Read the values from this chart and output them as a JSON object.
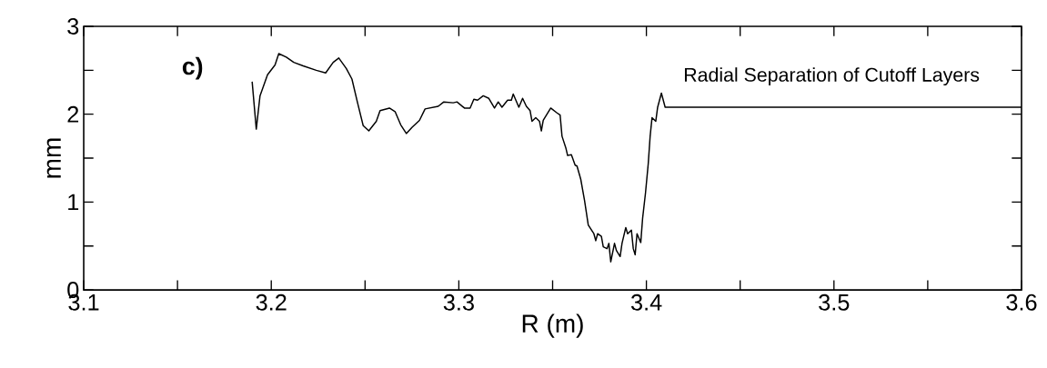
{
  "chart_data": {
    "type": "line",
    "xlabel": "R (m)",
    "ylabel": "mm",
    "annotations": [
      "c)",
      "Radial Separation of Cutoff Layers"
    ],
    "x": [
      3.1898,
      3.192,
      3.194,
      3.198,
      3.202,
      3.204,
      3.208,
      3.212,
      3.217,
      3.224,
      3.229,
      3.233,
      3.236,
      3.24,
      3.243,
      3.246,
      3.249,
      3.252,
      3.256,
      3.258,
      3.263,
      3.266,
      3.269,
      3.272,
      3.275,
      3.279,
      3.282,
      3.289,
      3.292,
      3.297,
      3.299,
      3.303,
      3.306,
      3.308,
      3.31,
      3.313,
      3.316,
      3.319,
      3.321,
      3.323,
      3.326,
      3.328,
      3.329,
      3.332,
      3.334,
      3.336,
      3.338,
      3.339,
      3.341,
      3.343,
      3.344,
      3.345,
      3.349,
      3.352,
      3.354,
      3.355,
      3.357,
      3.358,
      3.36,
      3.362,
      3.363,
      3.365,
      3.367,
      3.369,
      3.372,
      3.373,
      3.374,
      3.376,
      3.377,
      3.379,
      3.38,
      3.381,
      3.383,
      3.384,
      3.386,
      3.387,
      3.389,
      3.39,
      3.392,
      3.393,
      3.394,
      3.395,
      3.397,
      3.398,
      3.3995,
      3.401,
      3.402,
      3.403,
      3.405,
      3.406,
      3.408,
      3.41,
      3.6
    ],
    "values": [
      2.37,
      1.83,
      2.21,
      2.45,
      2.56,
      2.69,
      2.65,
      2.59,
      2.55,
      2.5,
      2.47,
      2.59,
      2.64,
      2.52,
      2.4,
      2.13,
      1.87,
      1.81,
      1.92,
      2.04,
      2.07,
      2.03,
      1.88,
      1.78,
      1.85,
      1.93,
      2.06,
      2.09,
      2.14,
      2.13,
      2.14,
      2.07,
      2.07,
      2.17,
      2.16,
      2.21,
      2.18,
      2.07,
      2.14,
      2.08,
      2.16,
      2.16,
      2.23,
      2.08,
      2.18,
      2.09,
      2.04,
      1.92,
      1.96,
      1.92,
      1.81,
      1.93,
      2.07,
      2.02,
      1.99,
      1.75,
      1.62,
      1.53,
      1.54,
      1.42,
      1.41,
      1.26,
      1.02,
      0.74,
      0.64,
      0.56,
      0.64,
      0.61,
      0.49,
      0.47,
      0.53,
      0.32,
      0.53,
      0.45,
      0.38,
      0.53,
      0.71,
      0.64,
      0.68,
      0.47,
      0.4,
      0.64,
      0.54,
      0.82,
      1.1,
      1.44,
      1.75,
      1.96,
      1.92,
      2.08,
      2.24,
      2.08,
      2.08
    ],
    "color": "#000000",
    "line_style": "solid",
    "marker": "none",
    "xlim": [
      3.1,
      3.6
    ],
    "ylim": [
      0,
      3
    ],
    "xticks": [
      3.1,
      {
        "value": 3.15,
        "label": null
      },
      3.2,
      {
        "value": 3.25,
        "label": null
      },
      3.3,
      {
        "value": 3.35,
        "label": null
      },
      3.4,
      {
        "value": 3.45,
        "label": null
      },
      3.5,
      {
        "value": 3.55,
        "label": null
      },
      3.6
    ],
    "yticks": [
      0,
      {
        "value": 0.5,
        "label": null
      },
      1,
      {
        "value": 1.5,
        "label": null
      },
      2,
      {
        "value": 2.5,
        "label": null
      },
      3
    ]
  }
}
